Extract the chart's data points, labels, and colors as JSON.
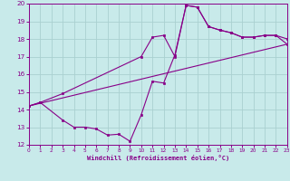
{
  "title": "",
  "xlabel": "Windchill (Refroidissement éolien,°C)",
  "bg_color": "#c8eaea",
  "line_color": "#880088",
  "marker_color": "#880088",
  "xlim": [
    0,
    23
  ],
  "ylim": [
    12,
    20
  ],
  "xticks": [
    0,
    1,
    2,
    3,
    4,
    5,
    6,
    7,
    8,
    9,
    10,
    11,
    12,
    13,
    14,
    15,
    16,
    17,
    18,
    19,
    20,
    21,
    22,
    23
  ],
  "yticks": [
    12,
    13,
    14,
    15,
    16,
    17,
    18,
    19,
    20
  ],
  "grid_color": "#aad0d0",
  "series1_x": [
    0,
    1,
    3,
    10,
    11,
    12,
    13,
    14,
    15,
    16,
    17,
    18,
    19,
    20,
    21,
    22,
    23
  ],
  "series1_y": [
    14.2,
    14.4,
    14.9,
    17.0,
    18.1,
    18.2,
    17.0,
    19.9,
    19.8,
    18.7,
    18.5,
    18.35,
    18.1,
    18.1,
    18.2,
    18.2,
    18.0
  ],
  "series2_x": [
    0,
    1,
    3,
    4,
    5,
    6,
    7,
    8,
    9,
    10,
    11,
    12,
    13,
    14,
    15,
    16,
    17,
    18,
    19,
    20,
    21,
    22,
    23
  ],
  "series2_y": [
    14.2,
    14.4,
    13.4,
    13.0,
    13.0,
    12.9,
    12.55,
    12.6,
    12.2,
    13.7,
    15.6,
    15.5,
    17.1,
    19.9,
    19.8,
    18.7,
    18.5,
    18.35,
    18.1,
    18.1,
    18.2,
    18.2,
    17.7
  ],
  "series3_x": [
    0,
    23
  ],
  "series3_y": [
    14.2,
    17.7
  ]
}
